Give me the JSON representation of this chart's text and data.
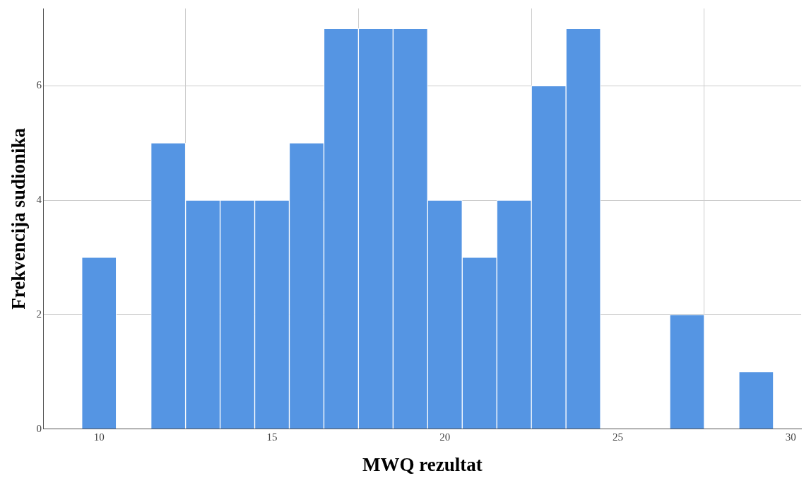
{
  "chart_data": {
    "type": "histogram",
    "xlabel": "MWQ rezultat",
    "ylabel": "Frekvencija sudionika",
    "bins": [
      9.5,
      10.5,
      11.5,
      12.5,
      13.5,
      14.5,
      15.5,
      16.5,
      17.5,
      18.5,
      19.5,
      20.5,
      21.5,
      22.5,
      23.5,
      24.5,
      25.5,
      26.5,
      27.5,
      28.5,
      29.5
    ],
    "values": [
      3,
      0,
      5,
      4,
      4,
      4,
      5,
      7,
      7,
      7,
      4,
      3,
      4,
      6,
      7,
      0,
      0,
      2,
      0,
      1
    ],
    "color": "#5595e3",
    "xlim": [
      8.4,
      30.3
    ],
    "xticks": [
      10,
      15,
      20,
      25,
      30
    ],
    "ylim": [
      0,
      7.35
    ],
    "yticks": [
      0,
      2,
      4,
      6
    ],
    "grid": true
  }
}
